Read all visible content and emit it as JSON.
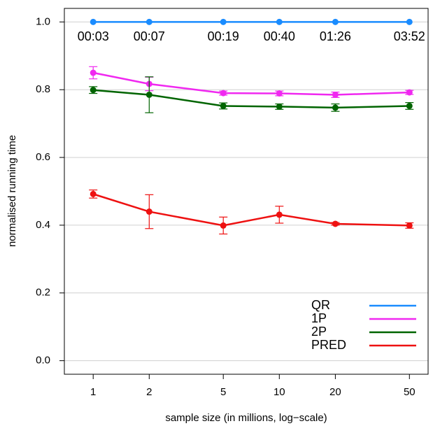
{
  "chart_data": {
    "type": "line",
    "x_label": "sample size (in millions, log−scale)",
    "y_label": "normalised running time",
    "x": [
      1,
      2,
      5,
      10,
      20,
      50
    ],
    "xscale": "log",
    "xlim": [
      0.7,
      63
    ],
    "xticks": [
      1,
      2,
      5,
      10,
      20,
      50
    ],
    "ylim": [
      -0.04,
      1.04
    ],
    "yticks": [
      {
        "value": 0,
        "label": "0.0"
      },
      0.2,
      0.4,
      0.6,
      {
        "value": 1,
        "label": "1.0"
      },
      0.8
    ],
    "grid": true,
    "legend": "bottom-right",
    "series": [
      {
        "name": "QR",
        "color": "#1a8cff",
        "values": [
          1.0,
          1.0,
          1.0,
          1.0,
          1.0,
          1.0
        ],
        "annotations": [
          "00:03",
          "00:07",
          "00:19",
          "00:40",
          "01:26",
          "03:52"
        ]
      },
      {
        "name": "1P",
        "color": "#f028f0",
        "values": [
          0.85,
          0.817,
          0.79,
          0.789,
          0.785,
          0.792
        ],
        "errors": [
          0.018,
          0.02,
          0.006,
          0.007,
          0.008,
          0.006
        ]
      },
      {
        "name": "2P",
        "color": "#006400",
        "values": [
          0.799,
          0.785,
          0.752,
          0.75,
          0.747,
          0.752
        ],
        "errors": [
          0.01,
          0.053,
          0.009,
          0.008,
          0.011,
          0.01
        ]
      },
      {
        "name": "PRED",
        "color": "#ee1111",
        "values": [
          0.492,
          0.44,
          0.399,
          0.431,
          0.404,
          0.399
        ],
        "errors": [
          0.012,
          0.05,
          0.025,
          0.025,
          0.004,
          0.008
        ]
      }
    ]
  }
}
